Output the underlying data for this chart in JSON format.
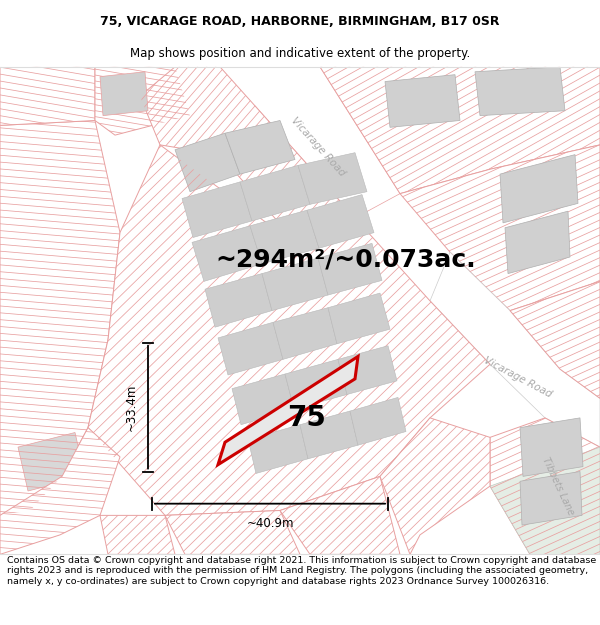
{
  "title_line1": "75, VICARAGE ROAD, HARBORNE, BIRMINGHAM, B17 0SR",
  "title_line2": "Map shows position and indicative extent of the property.",
  "footer_text": "Contains OS data © Crown copyright and database right 2021. This information is subject to Crown copyright and database rights 2023 and is reproduced with the permission of HM Land Registry. The polygons (including the associated geometry, namely x, y co-ordinates) are subject to Crown copyright and database rights 2023 Ordnance Survey 100026316.",
  "area_text": "~294m²/~0.073ac.",
  "number_text": "75",
  "width_label": "~40.9m",
  "height_label": "~33.4m",
  "road_label_upper": "Vicarage Road",
  "road_label_lower": "Vicarage Road",
  "tibbets_lane_label": "Tibbets Lane",
  "background_color": "#ffffff",
  "hatch_color": "#e8a0a0",
  "highlight_stroke": "#cc0000",
  "gray_bldg": "#d0d0d0",
  "road_area_color": "#f0f0f0",
  "tibbets_color": "#e8ede8",
  "title_fontsize": 9,
  "footer_fontsize": 6.8,
  "area_fontsize": 18,
  "number_fontsize": 20
}
